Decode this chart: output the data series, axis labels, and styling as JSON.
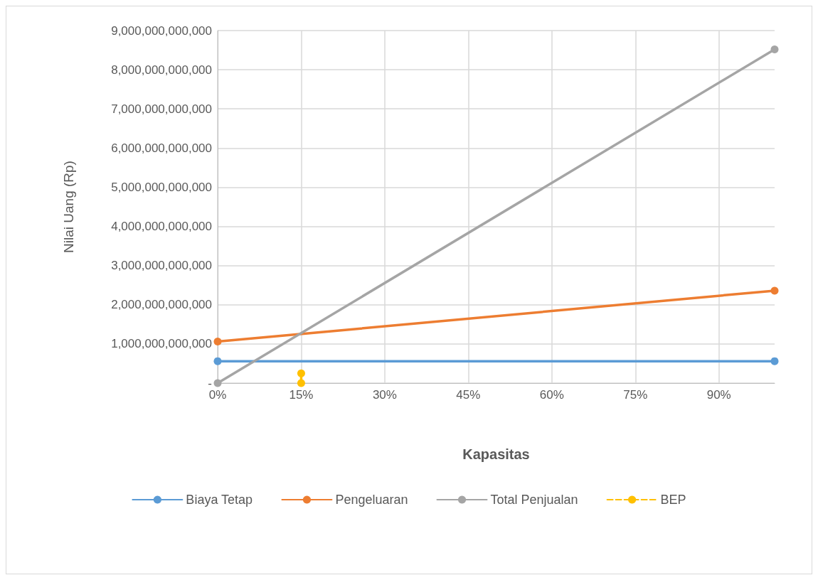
{
  "chart_data": {
    "type": "line",
    "xlabel": "Kapasitas",
    "ylabel": "Nilai Uang (Rp)",
    "xlim": [
      0,
      100
    ],
    "xticks": [
      {
        "value": 0,
        "label": "0%"
      },
      {
        "value": 15,
        "label": "15%"
      },
      {
        "value": 30,
        "label": "30%"
      },
      {
        "value": 45,
        "label": "45%"
      },
      {
        "value": 60,
        "label": "60%"
      },
      {
        "value": 75,
        "label": "75%"
      },
      {
        "value": 90,
        "label": "90%"
      }
    ],
    "ylim": [
      0,
      9000000000000
    ],
    "yticks": [
      {
        "value": 0,
        "label": "-"
      },
      {
        "value": 1000000000000,
        "label": "1,000,000,000,000"
      },
      {
        "value": 2000000000000,
        "label": "2,000,000,000,000"
      },
      {
        "value": 3000000000000,
        "label": "3,000,000,000,000"
      },
      {
        "value": 4000000000000,
        "label": "4,000,000,000,000"
      },
      {
        "value": 5000000000000,
        "label": "5,000,000,000,000"
      },
      {
        "value": 6000000000000,
        "label": "6,000,000,000,000"
      },
      {
        "value": 7000000000000,
        "label": "7,000,000,000,000"
      },
      {
        "value": 8000000000000,
        "label": "8,000,000,000,000"
      },
      {
        "value": 9000000000000,
        "label": "9,000,000,000,000"
      }
    ],
    "grid": true,
    "legend": "bottom",
    "marker": "circle",
    "series": [
      {
        "name": "Biaya Tetap",
        "color": "#5b9bd5",
        "x": [
          0,
          100
        ],
        "values": [
          560000000000,
          560000000000
        ]
      },
      {
        "name": "Pengeluaran",
        "color": "#ed7d31",
        "x": [
          0,
          100
        ],
        "values": [
          1060000000000,
          2360000000000
        ]
      },
      {
        "name": "Total Penjualan",
        "color": "#a5a5a5",
        "x": [
          0,
          100
        ],
        "values": [
          0,
          8520000000000
        ]
      },
      {
        "name": "BEP",
        "color": "#ffc000",
        "x": [
          15,
          15
        ],
        "values": [
          250000000000,
          0
        ],
        "line_style": "dashed"
      }
    ]
  }
}
